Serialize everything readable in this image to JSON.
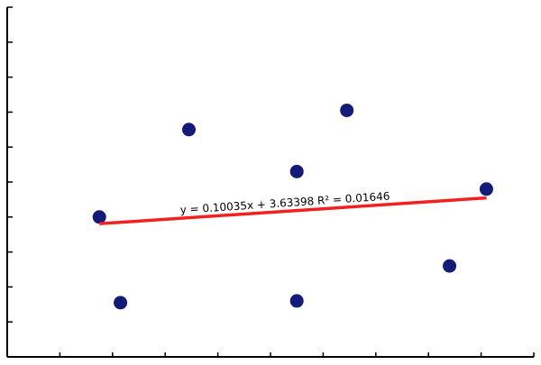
{
  "chart_data": {
    "type": "scatter",
    "title": "",
    "xlabel": "",
    "ylabel": "",
    "xlim": [
      0,
      10
    ],
    "ylim": [
      0,
      10
    ],
    "grid": false,
    "points": [
      {
        "x": 1.75,
        "y": 4.0
      },
      {
        "x": 2.15,
        "y": 1.55
      },
      {
        "x": 3.45,
        "y": 6.5
      },
      {
        "x": 5.5,
        "y": 1.6
      },
      {
        "x": 5.5,
        "y": 5.3
      },
      {
        "x": 6.45,
        "y": 7.05
      },
      {
        "x": 8.4,
        "y": 2.6
      },
      {
        "x": 9.1,
        "y": 4.8
      }
    ],
    "trendline": {
      "slope": 0.10035,
      "intercept": 3.63398,
      "x_range": [
        1.75,
        9.1
      ],
      "label": "y = 0.10035x + 3.63398    R² = 0.01646"
    },
    "colors": {
      "point": "#131a78",
      "trendline": "#f41f1f",
      "axis": "#000000"
    }
  }
}
